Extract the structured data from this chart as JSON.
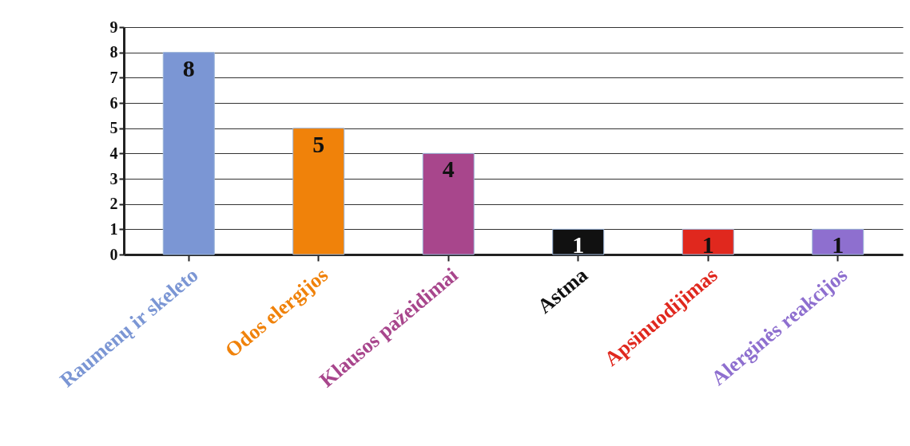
{
  "chart_data": {
    "type": "bar",
    "categories": [
      "Raumenų ir skeleto",
      "Odos elergijos",
      "Klausos pažeidimai",
      "Astma",
      "Apsinuodijimas",
      "Alerginės reakcijos"
    ],
    "values": [
      8,
      5,
      4,
      1,
      1,
      1
    ],
    "colors": [
      "#7b96d4",
      "#f0820a",
      "#a8468c",
      "#111111",
      "#e0281e",
      "#8e6fcf"
    ],
    "ylim": [
      0,
      9
    ],
    "yticks": [
      0,
      1,
      2,
      3,
      4,
      5,
      6,
      7,
      8,
      9
    ],
    "grid": "y",
    "data_labels": true
  }
}
